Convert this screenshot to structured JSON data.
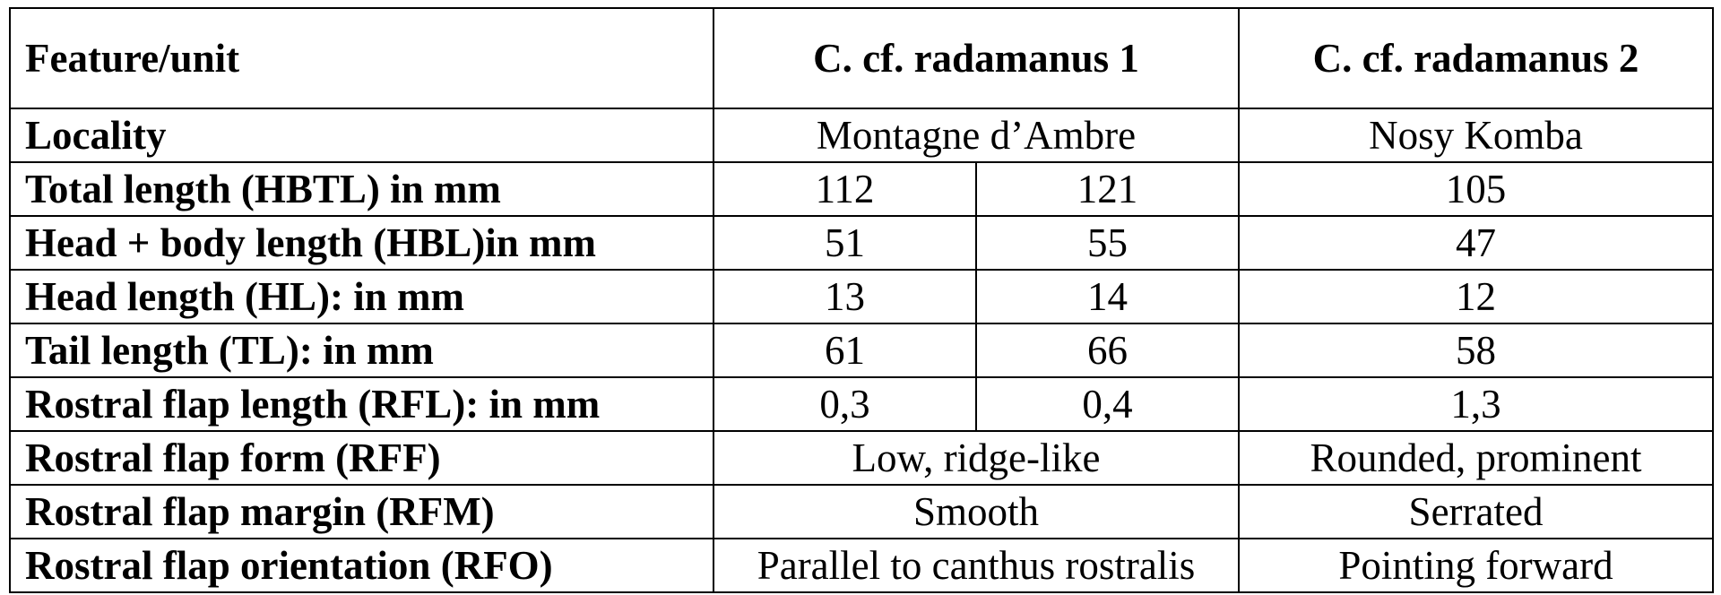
{
  "header": {
    "feature": "Feature/unit",
    "species1": "C. cf. radamanus 1",
    "species2": "C. cf. radamanus 2"
  },
  "rows": [
    {
      "feature": "Locality",
      "s1": "Montagne d’Ambre",
      "s2": "Nosy Komba"
    },
    {
      "feature": "Total length (HBTL) in mm",
      "s1a": "112",
      "s1b": "121",
      "s2": "105"
    },
    {
      "feature": "Head + body length (HBL)in mm",
      "s1a": "51",
      "s1b": "55",
      "s2": "47"
    },
    {
      "feature": "Head length (HL): in mm",
      "s1a": "13",
      "s1b": "14",
      "s2": "12"
    },
    {
      "feature": "Tail length (TL): in mm",
      "s1a": "61",
      "s1b": "66",
      "s2": "58"
    },
    {
      "feature": "Rostral flap length (RFL): in mm",
      "s1a": "0,3",
      "s1b": "0,4",
      "s2": "1,3"
    },
    {
      "feature": "Rostral flap form (RFF)",
      "s1": "Low, ridge-like",
      "s2": "Rounded, prominent"
    },
    {
      "feature": "Rostral flap margin (RFM)",
      "s1": "Smooth",
      "s2": "Serrated"
    },
    {
      "feature": "Rostral flap orientation (RFO)",
      "s1": "Parallel to canthus rostralis",
      "s2": "Pointing forward"
    }
  ]
}
